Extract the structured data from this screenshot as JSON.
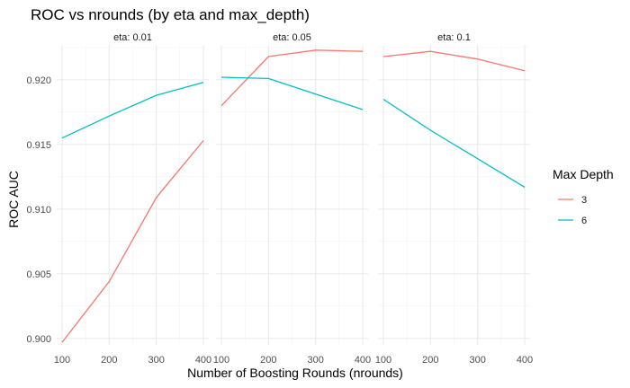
{
  "chart_data": {
    "type": "line",
    "title": "ROC vs nrounds (by eta and max_depth)",
    "xlabel": "Number of Boosting Rounds (nrounds)",
    "ylabel": "ROC AUC",
    "x_ticks": [
      100,
      200,
      300,
      400
    ],
    "y_ticks": [
      "0.900",
      "0.905",
      "0.910",
      "0.915",
      "0.920"
    ],
    "y_tick_values": [
      0.9,
      0.905,
      0.91,
      0.915,
      0.92
    ],
    "xlim": [
      100,
      400
    ],
    "ylim": [
      0.8995,
      0.9227
    ],
    "grid": true,
    "legend": {
      "title": "Max Depth",
      "placement": "right"
    },
    "colors": {
      "3": "#F8766D",
      "6": "#00BFC4"
    },
    "panels": [
      {
        "strip": "eta: 0.01",
        "series": [
          {
            "name": "3",
            "x": [
              100,
              200,
              300,
              400
            ],
            "values": [
              0.8997,
              0.9044,
              0.9109,
              0.9153
            ]
          },
          {
            "name": "6",
            "x": [
              100,
              200,
              300,
              400
            ],
            "values": [
              0.9155,
              0.9172,
              0.9188,
              0.9198
            ]
          }
        ]
      },
      {
        "strip": "eta: 0.05",
        "series": [
          {
            "name": "3",
            "x": [
              100,
              200,
              300,
              400
            ],
            "values": [
              0.918,
              0.9218,
              0.9223,
              0.9222
            ]
          },
          {
            "name": "6",
            "x": [
              100,
              200,
              300,
              400
            ],
            "values": [
              0.9202,
              0.9201,
              0.9189,
              0.9177
            ]
          }
        ]
      },
      {
        "strip": "eta: 0.1",
        "series": [
          {
            "name": "3",
            "x": [
              100,
              200,
              300,
              400
            ],
            "values": [
              0.9218,
              0.9222,
              0.9216,
              0.9207
            ]
          },
          {
            "name": "6",
            "x": [
              100,
              200,
              300,
              400
            ],
            "values": [
              0.9185,
              0.9161,
              0.9139,
              0.9117
            ]
          }
        ]
      }
    ]
  }
}
